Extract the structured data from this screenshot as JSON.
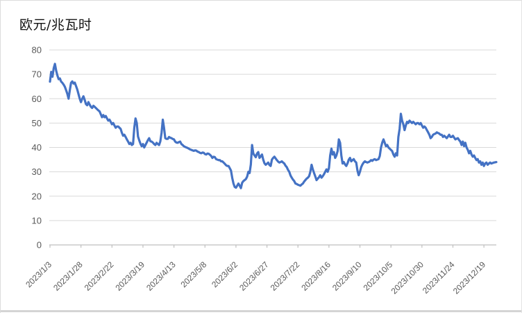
{
  "chart_data": {
    "type": "line",
    "title": "欧元/兆瓦时",
    "xlabel": "",
    "ylabel": "",
    "ylim": [
      0,
      80
    ],
    "y_tick_step": 10,
    "y_tick_labels": [
      "0",
      "10",
      "20",
      "30",
      "40",
      "50",
      "60",
      "70",
      "80"
    ],
    "x_tick_labels": [
      "2023/1/3",
      "2023/1/28",
      "2023/2/22",
      "2023/3/19",
      "2023/4/13",
      "2023/5/8",
      "2023/6/2",
      "2023/6/27",
      "2023/7/22",
      "2023/8/16",
      "2023/9/10",
      "2023/10/5",
      "2023/10/30",
      "2023/11/24",
      "2023/12/19"
    ],
    "x_tick_interval": 25,
    "grid": true,
    "legend_position": "none",
    "line_color": "#4472C4",
    "gridline_color": "#D9D9D9",
    "axis_color": "#BFBFBF",
    "tick_label_color": "#595959",
    "values": [
      67,
      71,
      69,
      72.5,
      74.3,
      71.5,
      69.5,
      68,
      68.3,
      67,
      66.5,
      65.8,
      64.9,
      63.5,
      62,
      60,
      63.5,
      66.5,
      67.1,
      66.2,
      66.6,
      65.2,
      63.8,
      61.9,
      60,
      58.6,
      60,
      61,
      59.5,
      57.8,
      57.3,
      58.6,
      57.6,
      56.7,
      56.2,
      57.1,
      56.7,
      56.2,
      55.7,
      55.2,
      54.8,
      53.6,
      52.4,
      53.3,
      52.4,
      52.9,
      51.9,
      51,
      51.4,
      50.5,
      49.5,
      50,
      49,
      48.1,
      48.6,
      48.6,
      48.1,
      47.6,
      46,
      44.8,
      45.2,
      44.3,
      43.3,
      42.4,
      41.4,
      41.9,
      41,
      41.4,
      48.1,
      51.9,
      50,
      44.5,
      42.9,
      41.5,
      40.5,
      41.4,
      40,
      41,
      42,
      43,
      43.8,
      42.5,
      42.4,
      42,
      41.4,
      41,
      41.9,
      41.4,
      41,
      42.5,
      46,
      51.4,
      48,
      43.8,
      43.5,
      43.5,
      44.3,
      44,
      43.8,
      43.5,
      43.3,
      42.4,
      42,
      41.9,
      42.2,
      42.4,
      41.4,
      41,
      40.5,
      40.2,
      40,
      39.8,
      39.5,
      39.2,
      39,
      38.8,
      38.6,
      38.8,
      38.7,
      38.3,
      38.1,
      37.8,
      37.6,
      37.9,
      37.8,
      37.3,
      37.1,
      37.5,
      37.4,
      37,
      36.5,
      35.7,
      36.2,
      36,
      35.2,
      35,
      34.8,
      34.8,
      34.3,
      34.3,
      33.8,
      33.3,
      32.7,
      32.4,
      32.4,
      31.5,
      30.5,
      27.5,
      25.2,
      23.8,
      23.5,
      24.3,
      25.2,
      24.3,
      23.3,
      25.5,
      26.2,
      26.6,
      27,
      28,
      30,
      29.5,
      33,
      41,
      37.5,
      36.7,
      36,
      37.5,
      38.1,
      35.7,
      36.3,
      37.1,
      35,
      33.5,
      32.9,
      33.3,
      33.8,
      32.8,
      32.4,
      35,
      35.7,
      36.2,
      35.5,
      34.8,
      34.2,
      33.8,
      34,
      34.3,
      33.8,
      33.4,
      32.5,
      31.9,
      30.8,
      30,
      28.5,
      27.6,
      26.8,
      26.2,
      25.2,
      25,
      24.7,
      24.5,
      24.3,
      24.8,
      25.2,
      26,
      26.6,
      27.2,
      27.6,
      28.2,
      30,
      32.9,
      31,
      29.5,
      28.1,
      26.6,
      27.2,
      27.8,
      28.6,
      27.6,
      28.2,
      29,
      30,
      31,
      30,
      31.5,
      36.7,
      39.5,
      37.1,
      38.1,
      35.7,
      36.7,
      38.5,
      43.3,
      41.9,
      36.7,
      33.4,
      34,
      33,
      32.4,
      33.5,
      35,
      35.7,
      34.3,
      34.8,
      35.2,
      34.3,
      33.8,
      30.5,
      28.6,
      30,
      31.9,
      33,
      33.8,
      34.3,
      34,
      33.8,
      34,
      34.3,
      34.8,
      34.5,
      35,
      35.2,
      34.8,
      35,
      35.2,
      36.5,
      40,
      42,
      43.3,
      41.9,
      40.5,
      41,
      40,
      39.5,
      39,
      38.5,
      37.1,
      36.2,
      37.6,
      36.7,
      44.3,
      47.6,
      53.8,
      51,
      49.5,
      47.1,
      49,
      50.5,
      50,
      51,
      50.5,
      50,
      50.5,
      50,
      49.5,
      50,
      50,
      49.5,
      50,
      49,
      48.1,
      48.6,
      48.1,
      47.1,
      46.2,
      45.2,
      43.8,
      44.3,
      45.2,
      45.5,
      45.7,
      46.2,
      45.9,
      45.7,
      45.2,
      45.2,
      44.3,
      44.8,
      44.3,
      43.8,
      44.5,
      45.2,
      44.3,
      44.3,
      44.8,
      44,
      43.3,
      43.6,
      43.8,
      43,
      42.4,
      41,
      42.4,
      40.5,
      41.9,
      40,
      39,
      37.6,
      38.6,
      37.1,
      36.2,
      36.7,
      35.7,
      34.8,
      35.2,
      33.8,
      34.3,
      32.9,
      33.8,
      32.4,
      33.4,
      33.8,
      32.9,
      33.4,
      33.8,
      33.4,
      33.6,
      33.8,
      33.9,
      34
    ]
  }
}
